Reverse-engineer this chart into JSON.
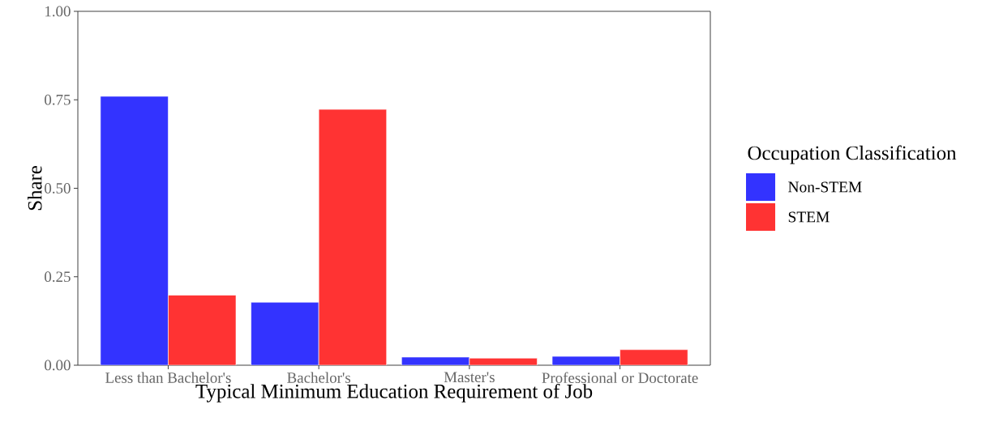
{
  "chart_data": {
    "type": "bar",
    "xlabel": "Typical Minimum Education Requirement of Job",
    "ylabel": "Share",
    "legend_title": "Occupation Classification",
    "categories": [
      "Less than Bachelor's",
      "Bachelor's",
      "Master's",
      "Professional or Doctorate"
    ],
    "series": [
      {
        "name": "Non-STEM",
        "color": "#3333ff",
        "values": [
          0.76,
          0.178,
          0.023,
          0.025
        ]
      },
      {
        "name": "STEM",
        "color": "#ff3333",
        "values": [
          0.198,
          0.723,
          0.02,
          0.044
        ]
      }
    ],
    "ylim": [
      0,
      1
    ],
    "yticks": [
      {
        "value": 0,
        "label": "0.00"
      },
      {
        "value": 0.25,
        "label": "0.25"
      },
      {
        "value": 0.5,
        "label": "0.50"
      },
      {
        "value": 0.75,
        "label": "0.75"
      },
      {
        "value": 1,
        "label": "1.00"
      }
    ],
    "grid": false,
    "legend": "right"
  }
}
